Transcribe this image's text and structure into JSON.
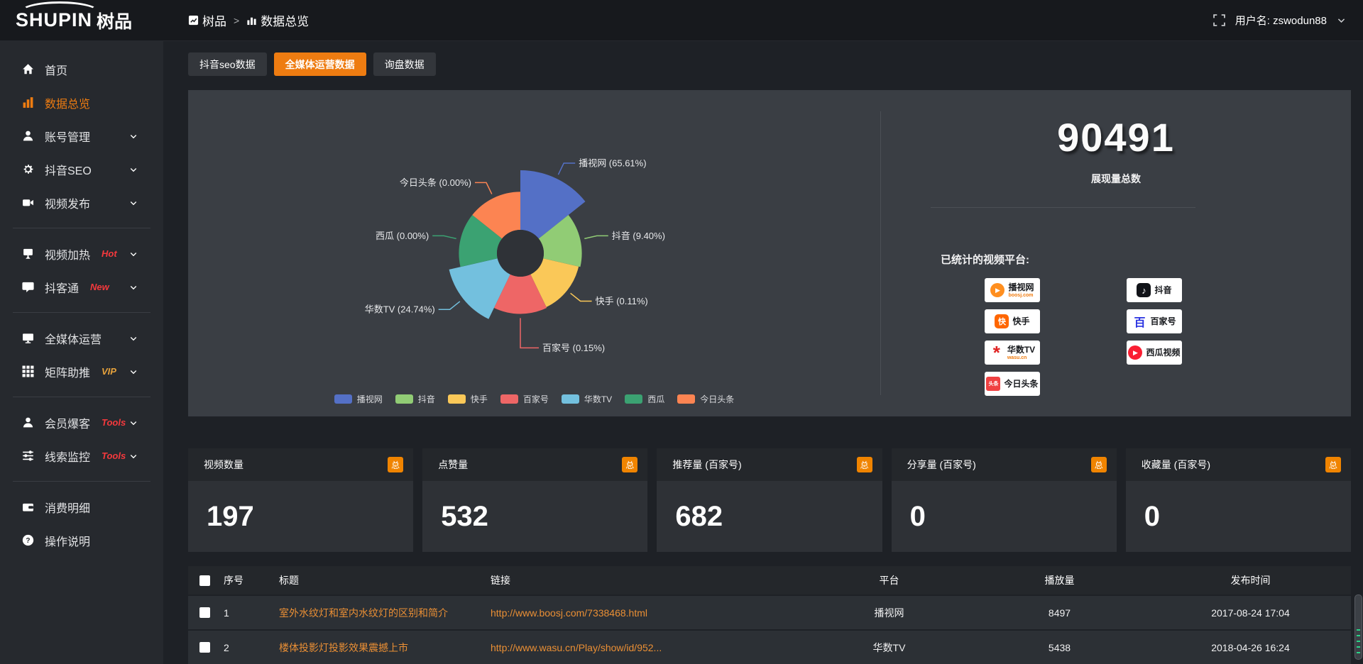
{
  "colors": {
    "accent": "#ee7c11",
    "link_orange": "#ea8f35",
    "badge_orange": "#f08400",
    "topbar_bg": "#17191d",
    "sidebar_bg": "#26292e",
    "content_bg": "#1e2126",
    "panel_bg": "#3a3e44",
    "card_header_bg": "#24272b",
    "card_body_bg": "#2e3136",
    "table_row_bg": "#2c3035"
  },
  "topbar": {
    "logo_primary": "SHUPIN",
    "logo_secondary": "树品",
    "breadcrumb": {
      "root": "树品",
      "separator": ">",
      "current": "数据总览"
    },
    "username": "用户名: zswodun88"
  },
  "sidebar": {
    "items": [
      {
        "label": "首页",
        "icon": "home",
        "active": false,
        "chevron": false,
        "divider_after": false
      },
      {
        "label": "数据总览",
        "icon": "bar-chart",
        "active": true,
        "chevron": false,
        "divider_after": false
      },
      {
        "label": "账号管理",
        "icon": "user",
        "active": false,
        "chevron": true,
        "divider_after": false
      },
      {
        "label": "抖音SEO",
        "icon": "gear",
        "active": false,
        "chevron": true,
        "divider_after": false
      },
      {
        "label": "视频发布",
        "icon": "video",
        "active": false,
        "chevron": true,
        "divider_after": true
      },
      {
        "label": "视频加热",
        "icon": "billboard",
        "tag": "Hot",
        "tag_color": "#f5393d",
        "active": false,
        "chevron": true,
        "divider_after": false
      },
      {
        "label": "抖客通",
        "icon": "chat",
        "tag": "New",
        "tag_color": "#f5393d",
        "active": false,
        "chevron": true,
        "divider_after": true
      },
      {
        "label": "全媒体运营",
        "icon": "monitor",
        "active": false,
        "chevron": true,
        "divider_after": false
      },
      {
        "label": "矩阵助推",
        "icon": "grid",
        "tag": "VIP",
        "tag_color": "#e6a23c",
        "active": false,
        "chevron": true,
        "divider_after": true
      },
      {
        "label": "会员爆客",
        "icon": "member",
        "tag": "Tools",
        "tag_color": "#f5393d",
        "active": false,
        "chevron": true,
        "divider_after": false
      },
      {
        "label": "线索监控",
        "icon": "sliders",
        "tag": "Tools",
        "tag_color": "#f5393d",
        "active": false,
        "chevron": true,
        "divider_after": true
      },
      {
        "label": "消费明细",
        "icon": "wallet",
        "active": false,
        "chevron": false,
        "divider_after": false
      },
      {
        "label": "操作说明",
        "icon": "help",
        "active": false,
        "chevron": false,
        "divider_after": false
      }
    ]
  },
  "tabs": {
    "items": [
      {
        "label": "抖音seo数据",
        "active": false
      },
      {
        "label": "全媒体运营数据",
        "active": true
      },
      {
        "label": "询盘数据",
        "active": false
      }
    ]
  },
  "chart_data": {
    "type": "pie",
    "subtype": "rose-donut",
    "unit": "%",
    "label_format": "{name} ({value}%)",
    "start_angle": "top",
    "clockwise": true,
    "inner_radius_ratio": 0.28,
    "legend_position": "bottom",
    "slices": [
      {
        "name": "播视网",
        "value": 65.61,
        "color": "#5470c6",
        "radius_ratio": 1.0
      },
      {
        "name": "抖音",
        "value": 9.4,
        "color": "#91cc75",
        "radius_ratio": 0.74
      },
      {
        "name": "快手",
        "value": 0.11,
        "color": "#fac858",
        "radius_ratio": 0.72
      },
      {
        "name": "百家号",
        "value": 0.15,
        "color": "#ee6666",
        "radius_ratio": 0.73
      },
      {
        "name": "华数TV",
        "value": 24.74,
        "color": "#73c0de",
        "radius_ratio": 0.88
      },
      {
        "name": "西瓜",
        "value": 0.0,
        "color": "#3ba272",
        "radius_ratio": 0.74
      },
      {
        "name": "今日头条",
        "value": 0.0,
        "color": "#fc8452",
        "radius_ratio": 0.74
      }
    ],
    "legend": [
      "播视网",
      "抖音",
      "快手",
      "百家号",
      "华数TV",
      "西瓜",
      "今日头条"
    ]
  },
  "summary": {
    "total_value": "90491",
    "total_label": "展现量总数",
    "platforms_label": "已统计的视频平台:",
    "platforms": [
      {
        "name": "播视网",
        "sub": "boosj.com",
        "logo": "boosj"
      },
      {
        "name": "抖音",
        "logo": "douyin"
      },
      {
        "name": "快手",
        "logo": "kuaishou"
      },
      {
        "name": "百家号",
        "logo": "baijiahao"
      },
      {
        "name": "华数TV",
        "sub": "wasu.cn",
        "logo": "wasu"
      },
      {
        "name": "西瓜视频",
        "logo": "xigua"
      },
      {
        "name": "今日头条",
        "logo": "toutiao"
      }
    ]
  },
  "stat_cards": [
    {
      "label": "视频数量",
      "badge": "总",
      "value": "197"
    },
    {
      "label": "点赞量",
      "badge": "总",
      "value": "532"
    },
    {
      "label": "推荐量 (百家号)",
      "badge": "总",
      "value": "682"
    },
    {
      "label": "分享量 (百家号)",
      "badge": "总",
      "value": "0"
    },
    {
      "label": "收藏量 (百家号)",
      "badge": "总",
      "value": "0"
    }
  ],
  "table": {
    "headers": [
      {
        "label": "序号",
        "align": "left"
      },
      {
        "label": "标题",
        "align": "left"
      },
      {
        "label": "链接",
        "align": "left"
      },
      {
        "label": "平台",
        "align": "center"
      },
      {
        "label": "播放量",
        "align": "center"
      },
      {
        "label": "发布时间",
        "align": "center"
      }
    ],
    "rows": [
      {
        "no": "1",
        "title": "室外水纹灯和室内水纹灯的区别和简介",
        "link": "http://www.boosj.com/7338468.html",
        "platform": "播视网",
        "plays": "8497",
        "time": "2017-08-24 17:04"
      },
      {
        "no": "2",
        "title": "楼体投影灯投影效果震撼上市",
        "link": "http://www.wasu.cn/Play/show/id/952...",
        "platform": "华数TV",
        "plays": "5438",
        "time": "2018-04-26 16:24"
      }
    ]
  }
}
